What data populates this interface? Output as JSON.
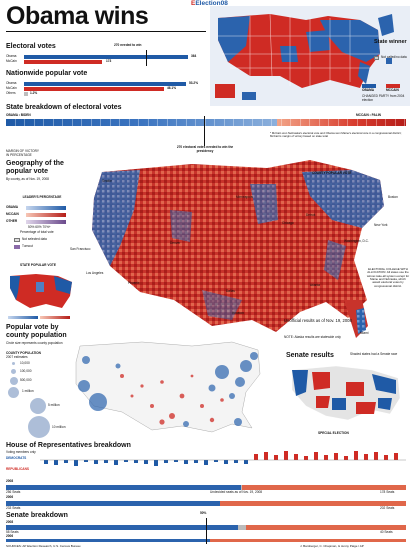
{
  "header": {
    "title": "Obama wins",
    "brand": "Election08"
  },
  "electoral": {
    "heading": "Electoral votes",
    "needed": "270 needed to win",
    "rows": [
      {
        "name": "Obama",
        "value": "364"
      },
      {
        "name": "McCain",
        "value": "173"
      }
    ]
  },
  "popular": {
    "heading": "Nationwide popular vote",
    "rows": [
      {
        "name": "Obama",
        "value": "53.2%"
      },
      {
        "name": "McCain",
        "value": "46.1%"
      },
      {
        "name": "Others",
        "value": "1.2%"
      }
    ]
  },
  "statebreak": {
    "heading": "State breakdown of electoral votes",
    "left": "OBAMA • BIDEN",
    "right": "MCCAIN • PALIN",
    "needed": "270 electoral votes needed to win the presidency",
    "note": "* McCain won Nebraska's electoral vote and Obama won Maine's electoral vote in a congressional district; McCain's margin of victory based on state total",
    "margin": "MARGIN OF VICTORY",
    "margin2": "IN PERCENTAGE"
  },
  "winner_map": {
    "heading": "State winner",
    "legend": [
      "Not called/no data",
      "OBAMA",
      "MCCAIN"
    ],
    "changed": "CHANGED PARTY from 2004 election"
  },
  "geo": {
    "heading": "Geography of the popular vote",
    "sub": "By county, as of Nov. 19, 2008",
    "leader": "LEADER'S PERCENTAGE",
    "candidates": [
      "OBAMA",
      "MCCAIN",
      "OTHER"
    ],
    "pct": "50% 60% 70%+",
    "pct_label": "Percentage of total vote",
    "nodata": "Not selected data",
    "turnout": "Turnout",
    "county_popular": "COUNTY POPULAR VOTE",
    "state_popular": "STATE POPULAR VOTE",
    "cities": [
      "Seattle",
      "San Francisco",
      "Los Angeles",
      "Phoenix",
      "Denver",
      "Dallas",
      "Houston",
      "Minneapolis",
      "Chicago",
      "Detroit",
      "Atlanta",
      "Miami",
      "Washington, D.C.",
      "New York",
      "Boston"
    ]
  },
  "college": {
    "text": "ELECTORAL COLLEGE WITH ALLOCATION: All states use the winner-take-all system except for Maine and Nebraska, which award electoral votes by congressional district."
  },
  "unofficial": {
    "text": "Unofficial results as of Nov. 19, 2008",
    "note": "NOTE: Alaska results are statewide only"
  },
  "county_pop": {
    "heading": "Popular vote by county population",
    "sub": "Circle size represents county population",
    "label": "COUNTY POPULATION",
    "year": "2007 estimates",
    "sizes": [
      "10,000",
      "100,000",
      "500,000",
      "1 million",
      "5 million",
      "10 million"
    ]
  },
  "senate": {
    "heading": "Senate results",
    "sub": "Shaded states had a Senate race",
    "special": "SPECIAL ELECTION"
  },
  "house": {
    "heading": "House of Representatives breakdown",
    "sub": "Voting members only",
    "democrats": "DEMOCRATS",
    "republicans": "REPUBLICANS",
    "rows": [
      {
        "year": "2008",
        "left": "256 Seats",
        "right": "178 Seats"
      },
      {
        "year": "2006",
        "left": "233 Seats",
        "right": "202 Seats"
      }
    ],
    "note": "Undecided seats as of Nov. 19, 2008"
  },
  "senate_break": {
    "heading": "Senate breakdown",
    "rows": [
      {
        "year": "2008",
        "left": "58 Seats",
        "right": "40 Seats"
      },
      {
        "year": "2006",
        "left": "51 Seats",
        "right": "49 Seats"
      }
    ],
    "pct": "50%"
  },
  "footer": {
    "sources": "SOURCES: AP Election Research, U.S. Census Bureau",
    "credit": "J. Bamberger, C. Chapman, & Jenny Paige / AP"
  }
}
